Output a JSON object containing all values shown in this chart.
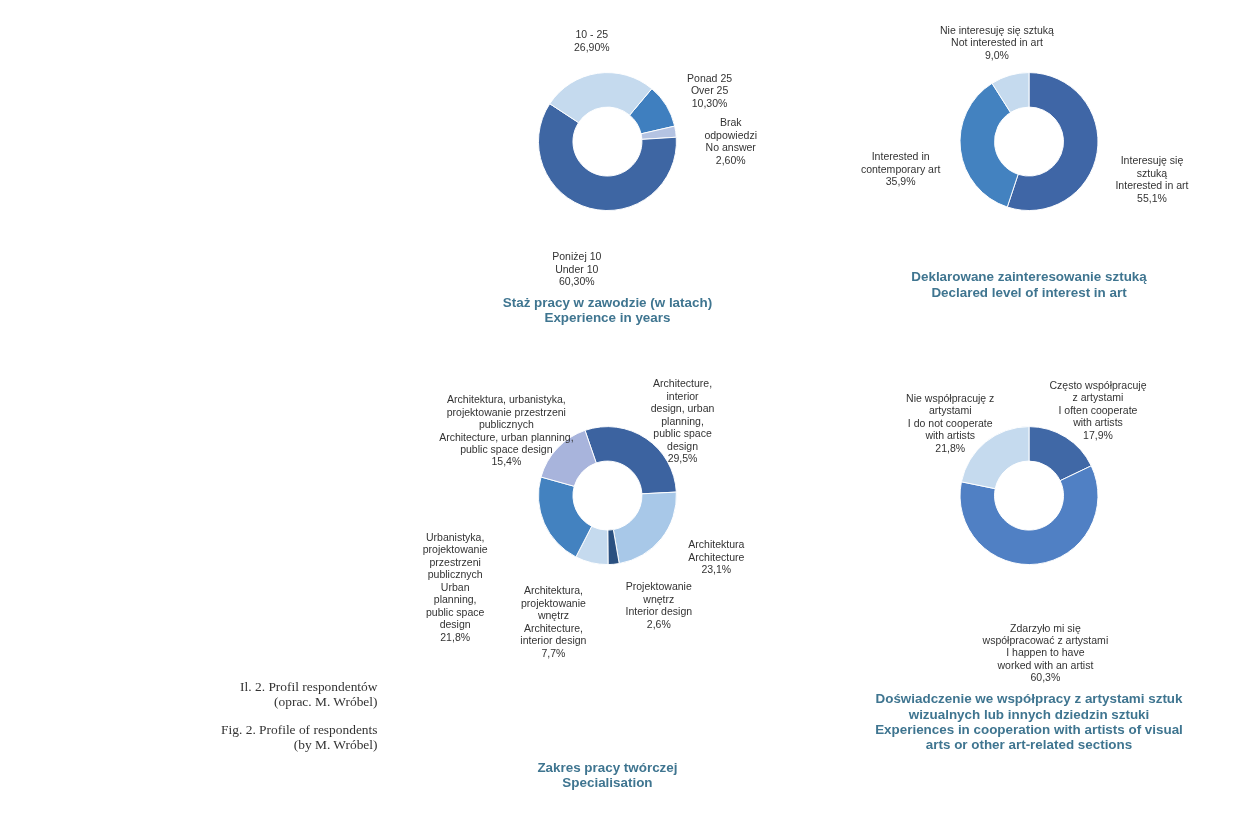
{
  "chart_data": [
    {
      "type": "donut",
      "title": "Staż pracy w zawodzie (w latach)\nExperience in years",
      "categories": [
        "Ponad 25\nOver 25",
        "Brak\nodpowiedzi\nNo answer",
        "Poniżej 10\nUnder 10",
        "10 - 25"
      ],
      "values": [
        10.3,
        2.6,
        60.3,
        26.9
      ],
      "value_labels": [
        "10,30%",
        "2,60%",
        "60,30%",
        "26,90%"
      ],
      "colors": [
        "#3f7fbf",
        "#b4c3e2",
        "#3e66a3",
        "#c5daee"
      ]
    },
    {
      "type": "donut",
      "title": "Deklarowane zainteresowanie sztuką\nDeclared level of interest in art",
      "categories": [
        "Interesuję się\nsztuką\nInterested in art",
        "Interested in\ncontemporary art",
        "Nie interesuję się sztuką\nNot interested in art"
      ],
      "values": [
        55.1,
        35.9,
        9.0
      ],
      "value_labels": [
        "55,1%",
        "35,9%",
        "9,0%"
      ],
      "colors": [
        "#3f66a6",
        "#4382c0",
        "#c5daee"
      ]
    },
    {
      "type": "donut",
      "title": "Zakres pracy twórczej\nSpecialisation",
      "categories": [
        "Architecture,\ninterior\ndesign, urban\nplanning,\npublic space\ndesign",
        "Architektura\nArchitecture",
        "Projektowanie\nwnętrz\nInterior design",
        "Architektura,\nprojektowanie\nwnętrz\nArchitecture,\ninterior design",
        "Urbanistyka,\nprojektowanie\nprzestrzeni\npublicznych\nUrban\nplanning,\npublic space\ndesign",
        "Architektura, urbanistyka,\nprojektowanie przestrzeni\npublicznych\nArchitecture, urban planning,\npublic space design"
      ],
      "values": [
        29.5,
        23.1,
        2.6,
        7.7,
        21.8,
        15.4
      ],
      "value_labels": [
        "29,5%",
        "23,1%",
        "2,6%",
        "7,7%",
        "21,8%",
        "15,4%"
      ],
      "colors": [
        "#3c63a0",
        "#a8c8e8",
        "#2a5080",
        "#c5daee",
        "#4382c0",
        "#a8b4dc"
      ],
      "annotations": [
        "Il. 2. Profil respondentów\n(oprac. M. Wróbel)",
        "Fig. 2. Profile of respondents\n(by M. Wróbel)"
      ]
    },
    {
      "type": "donut",
      "title": "Doświadczenie we współpracy z artystami sztuk\nwizualnych lub innych dziedzin sztuki\nExperiences in cooperation with artists of visual\narts or other art-related sections",
      "categories": [
        "Często współpracuję\nz artystami\nI often cooperate\nwith artists",
        "Zdarzyło mi się\nwspółpracować z artystami\nI happen to have\nworked with an artist",
        "Nie współpracuję z\nartystami\nI do not cooperate\nwith artists"
      ],
      "values": [
        17.9,
        60.3,
        21.8
      ],
      "value_labels": [
        "17,9%",
        "60,3%",
        "21,8%"
      ],
      "colors": [
        "#4068a6",
        "#5080c4",
        "#c5daee"
      ]
    }
  ]
}
